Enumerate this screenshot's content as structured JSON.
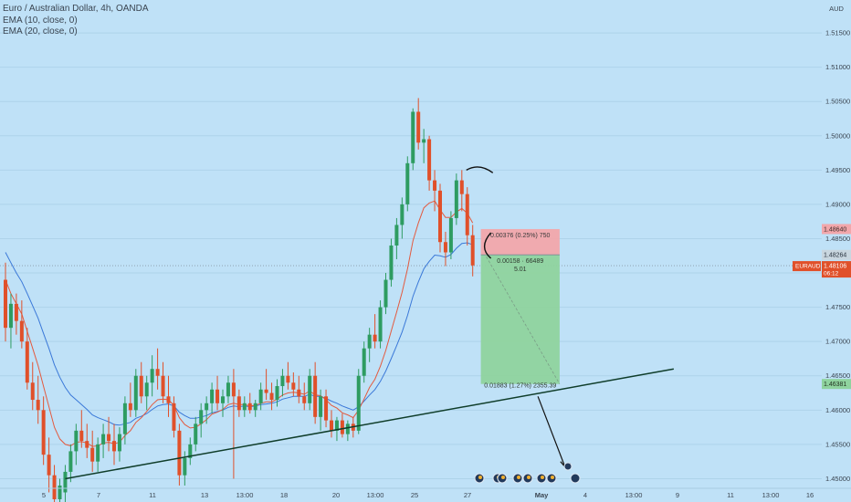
{
  "legend": {
    "symbol_title": "Euro / Australian Dollar, 4h, OANDA",
    "indicators": [
      "EMA (10, close, 0)",
      "EMA (20, close, 0)"
    ]
  },
  "colors": {
    "background": "#bfe1f7",
    "up": "#2e9c61",
    "down": "#e0502a",
    "ema10": "#e35a3f",
    "ema20": "#3a78d8",
    "stop_zone": "#f2a7ab",
    "target_zone": "#8fd39e",
    "price_tag": "#e0502a",
    "trendline": "#0f3d2a"
  },
  "chart_data": {
    "type": "candlestick",
    "symbol": "EURAUD",
    "timeframe": "4h",
    "currency_label": "AUD",
    "y_range": [
      1.4466,
      1.5198
    ],
    "y_ticks": [
      "1.51500",
      "1.51000",
      "1.50500",
      "1.50000",
      "1.49500",
      "1.49000",
      "1.48500",
      "1.48000",
      "1.47500",
      "1.47000",
      "1.46500",
      "1.46000",
      "1.45500",
      "1.45000"
    ],
    "x_ticks": [
      "5",
      "7",
      "11",
      "13",
      "13:00",
      "18",
      "20",
      "13:00",
      "25",
      "27",
      "May",
      "4",
      "13:00",
      "9",
      "11",
      "13:00",
      "16"
    ],
    "price_scale_tags": {
      "symbol": "EURAUD",
      "last_price": "1.48106",
      "countdown": "06:12",
      "stop_level": "1.48640",
      "entry_level": "1.48264",
      "target_level": "1.46381"
    },
    "last_price_line": 1.48106,
    "candles": [
      {
        "o": 1.479,
        "h": 1.4815,
        "l": 1.47,
        "c": 1.472
      },
      {
        "o": 1.472,
        "h": 1.477,
        "l": 1.469,
        "c": 1.4755
      },
      {
        "o": 1.4755,
        "h": 1.477,
        "l": 1.471,
        "c": 1.473
      },
      {
        "o": 1.473,
        "h": 1.476,
        "l": 1.469,
        "c": 1.47
      },
      {
        "o": 1.47,
        "h": 1.472,
        "l": 1.463,
        "c": 1.464
      },
      {
        "o": 1.464,
        "h": 1.467,
        "l": 1.46,
        "c": 1.4615
      },
      {
        "o": 1.4615,
        "h": 1.465,
        "l": 1.458,
        "c": 1.46
      },
      {
        "o": 1.46,
        "h": 1.462,
        "l": 1.452,
        "c": 1.4535
      },
      {
        "o": 1.4535,
        "h": 1.456,
        "l": 1.448,
        "c": 1.4505
      },
      {
        "o": 1.4505,
        "h": 1.452,
        "l": 1.444,
        "c": 1.447
      },
      {
        "o": 1.447,
        "h": 1.45,
        "l": 1.4455,
        "c": 1.449
      },
      {
        "o": 1.448,
        "h": 1.452,
        "l": 1.4466,
        "c": 1.451
      },
      {
        "o": 1.451,
        "h": 1.455,
        "l": 1.4495,
        "c": 1.454
      },
      {
        "o": 1.454,
        "h": 1.458,
        "l": 1.452,
        "c": 1.457
      },
      {
        "o": 1.457,
        "h": 1.46,
        "l": 1.4545,
        "c": 1.4555
      },
      {
        "o": 1.4555,
        "h": 1.458,
        "l": 1.453,
        "c": 1.4545
      },
      {
        "o": 1.4545,
        "h": 1.457,
        "l": 1.451,
        "c": 1.4525
      },
      {
        "o": 1.4525,
        "h": 1.456,
        "l": 1.451,
        "c": 1.455
      },
      {
        "o": 1.455,
        "h": 1.458,
        "l": 1.453,
        "c": 1.4565
      },
      {
        "o": 1.4565,
        "h": 1.459,
        "l": 1.454,
        "c": 1.4555
      },
      {
        "o": 1.4555,
        "h": 1.458,
        "l": 1.452,
        "c": 1.454
      },
      {
        "o": 1.454,
        "h": 1.4575,
        "l": 1.4525,
        "c": 1.4565
      },
      {
        "o": 1.4565,
        "h": 1.462,
        "l": 1.455,
        "c": 1.461
      },
      {
        "o": 1.461,
        "h": 1.464,
        "l": 1.459,
        "c": 1.46
      },
      {
        "o": 1.46,
        "h": 1.466,
        "l": 1.459,
        "c": 1.465
      },
      {
        "o": 1.465,
        "h": 1.467,
        "l": 1.461,
        "c": 1.462
      },
      {
        "o": 1.462,
        "h": 1.465,
        "l": 1.46,
        "c": 1.464
      },
      {
        "o": 1.464,
        "h": 1.468,
        "l": 1.462,
        "c": 1.466
      },
      {
        "o": 1.466,
        "h": 1.469,
        "l": 1.463,
        "c": 1.465
      },
      {
        "o": 1.465,
        "h": 1.467,
        "l": 1.461,
        "c": 1.462
      },
      {
        "o": 1.462,
        "h": 1.465,
        "l": 1.459,
        "c": 1.461
      },
      {
        "o": 1.461,
        "h": 1.462,
        "l": 1.456,
        "c": 1.457
      },
      {
        "o": 1.457,
        "h": 1.458,
        "l": 1.449,
        "c": 1.4505
      },
      {
        "o": 1.4505,
        "h": 1.454,
        "l": 1.449,
        "c": 1.453
      },
      {
        "o": 1.453,
        "h": 1.456,
        "l": 1.452,
        "c": 1.455
      },
      {
        "o": 1.455,
        "h": 1.459,
        "l": 1.454,
        "c": 1.458
      },
      {
        "o": 1.458,
        "h": 1.461,
        "l": 1.456,
        "c": 1.46
      },
      {
        "o": 1.46,
        "h": 1.462,
        "l": 1.458,
        "c": 1.461
      },
      {
        "o": 1.461,
        "h": 1.464,
        "l": 1.4595,
        "c": 1.463
      },
      {
        "o": 1.463,
        "h": 1.465,
        "l": 1.46,
        "c": 1.461
      },
      {
        "o": 1.461,
        "h": 1.463,
        "l": 1.459,
        "c": 1.462
      },
      {
        "o": 1.462,
        "h": 1.465,
        "l": 1.461,
        "c": 1.464
      },
      {
        "o": 1.464,
        "h": 1.466,
        "l": 1.45,
        "c": 1.462
      },
      {
        "o": 1.462,
        "h": 1.463,
        "l": 1.459,
        "c": 1.46
      },
      {
        "o": 1.46,
        "h": 1.462,
        "l": 1.459,
        "c": 1.461
      },
      {
        "o": 1.461,
        "h": 1.4625,
        "l": 1.4595,
        "c": 1.46
      },
      {
        "o": 1.46,
        "h": 1.4615,
        "l": 1.459,
        "c": 1.461
      },
      {
        "o": 1.461,
        "h": 1.464,
        "l": 1.46,
        "c": 1.463
      },
      {
        "o": 1.463,
        "h": 1.466,
        "l": 1.4615,
        "c": 1.4625
      },
      {
        "o": 1.4625,
        "h": 1.464,
        "l": 1.46,
        "c": 1.4615
      },
      {
        "o": 1.4615,
        "h": 1.4645,
        "l": 1.4605,
        "c": 1.4635
      },
      {
        "o": 1.4635,
        "h": 1.466,
        "l": 1.462,
        "c": 1.465
      },
      {
        "o": 1.465,
        "h": 1.467,
        "l": 1.463,
        "c": 1.464
      },
      {
        "o": 1.464,
        "h": 1.4655,
        "l": 1.462,
        "c": 1.463
      },
      {
        "o": 1.463,
        "h": 1.465,
        "l": 1.461,
        "c": 1.462
      },
      {
        "o": 1.462,
        "h": 1.464,
        "l": 1.46,
        "c": 1.461
      },
      {
        "o": 1.461,
        "h": 1.466,
        "l": 1.46,
        "c": 1.465
      },
      {
        "o": 1.465,
        "h": 1.467,
        "l": 1.458,
        "c": 1.459
      },
      {
        "o": 1.459,
        "h": 1.463,
        "l": 1.457,
        "c": 1.462
      },
      {
        "o": 1.462,
        "h": 1.463,
        "l": 1.4575,
        "c": 1.4585
      },
      {
        "o": 1.4585,
        "h": 1.46,
        "l": 1.456,
        "c": 1.457
      },
      {
        "o": 1.457,
        "h": 1.459,
        "l": 1.4555,
        "c": 1.4585
      },
      {
        "o": 1.4585,
        "h": 1.4595,
        "l": 1.456,
        "c": 1.4565
      },
      {
        "o": 1.4565,
        "h": 1.4585,
        "l": 1.4555,
        "c": 1.458
      },
      {
        "o": 1.458,
        "h": 1.459,
        "l": 1.456,
        "c": 1.457
      },
      {
        "o": 1.457,
        "h": 1.466,
        "l": 1.4565,
        "c": 1.465
      },
      {
        "o": 1.465,
        "h": 1.47,
        "l": 1.464,
        "c": 1.469
      },
      {
        "o": 1.469,
        "h": 1.472,
        "l": 1.467,
        "c": 1.471
      },
      {
        "o": 1.471,
        "h": 1.474,
        "l": 1.469,
        "c": 1.47
      },
      {
        "o": 1.47,
        "h": 1.476,
        "l": 1.469,
        "c": 1.475
      },
      {
        "o": 1.475,
        "h": 1.48,
        "l": 1.474,
        "c": 1.479
      },
      {
        "o": 1.479,
        "h": 1.485,
        "l": 1.478,
        "c": 1.484
      },
      {
        "o": 1.484,
        "h": 1.488,
        "l": 1.482,
        "c": 1.487
      },
      {
        "o": 1.487,
        "h": 1.491,
        "l": 1.485,
        "c": 1.49
      },
      {
        "o": 1.49,
        "h": 1.497,
        "l": 1.489,
        "c": 1.496
      },
      {
        "o": 1.496,
        "h": 1.504,
        "l": 1.495,
        "c": 1.5035
      },
      {
        "o": 1.5035,
        "h": 1.5055,
        "l": 1.498,
        "c": 1.499
      },
      {
        "o": 1.499,
        "h": 1.501,
        "l": 1.496,
        "c": 1.4995
      },
      {
        "o": 1.4995,
        "h": 1.5,
        "l": 1.492,
        "c": 1.4935
      },
      {
        "o": 1.4935,
        "h": 1.495,
        "l": 1.489,
        "c": 1.492
      },
      {
        "o": 1.492,
        "h": 1.493,
        "l": 1.483,
        "c": 1.4845
      },
      {
        "o": 1.4845,
        "h": 1.486,
        "l": 1.481,
        "c": 1.483
      },
      {
        "o": 1.483,
        "h": 1.489,
        "l": 1.482,
        "c": 1.488
      },
      {
        "o": 1.488,
        "h": 1.4945,
        "l": 1.487,
        "c": 1.4935
      },
      {
        "o": 1.4935,
        "h": 1.495,
        "l": 1.489,
        "c": 1.4915
      },
      {
        "o": 1.4915,
        "h": 1.4925,
        "l": 1.484,
        "c": 1.4855
      },
      {
        "o": 1.4855,
        "h": 1.487,
        "l": 1.4795,
        "c": 1.4811
      }
    ],
    "ema10": [
      1.479,
      1.477,
      1.4755,
      1.474,
      1.4715,
      1.469,
      1.4665,
      1.4635,
      1.4605,
      1.4575,
      1.4558,
      1.455,
      1.4548,
      1.4553,
      1.4554,
      1.4552,
      1.4547,
      1.4548,
      1.4552,
      1.4553,
      1.4551,
      1.4553,
      1.4563,
      1.457,
      1.4582,
      1.4589,
      1.4598,
      1.4608,
      1.4615,
      1.4616,
      1.4615,
      1.4607,
      1.4589,
      1.4579,
      1.4574,
      1.4575,
      1.458,
      1.4586,
      1.4594,
      1.4597,
      1.4601,
      1.4608,
      1.461,
      1.4608,
      1.4608,
      1.4606,
      1.4607,
      1.461,
      1.4612,
      1.4612,
      1.4616,
      1.4622,
      1.4625,
      1.4626,
      1.4625,
      1.4623,
      1.4628,
      1.4622,
      1.4621,
      1.4615,
      1.4607,
      1.4603,
      1.4596,
      1.4593,
      1.4589,
      1.46,
      1.4616,
      1.4633,
      1.4645,
      1.4664,
      1.4687,
      1.4715,
      1.4743,
      1.4772,
      1.4806,
      1.4847,
      1.4873,
      1.4895,
      1.4902,
      1.4905,
      1.4892,
      1.4881,
      1.4881,
      1.4889,
      1.4894,
      1.4887,
      1.4873
    ],
    "ema20": [
      1.483,
      1.4815,
      1.48,
      1.4787,
      1.477,
      1.4752,
      1.4734,
      1.4712,
      1.469,
      1.4666,
      1.4648,
      1.4633,
      1.4622,
      1.4615,
      1.4608,
      1.4601,
      1.4593,
      1.4589,
      1.4586,
      1.4583,
      1.4579,
      1.4578,
      1.458,
      1.4582,
      1.4588,
      1.4591,
      1.4595,
      1.4601,
      1.4606,
      1.4608,
      1.4609,
      1.4606,
      1.4597,
      1.4592,
      1.4588,
      1.4588,
      1.459,
      1.4592,
      1.4596,
      1.4598,
      1.46,
      1.4604,
      1.4606,
      1.4605,
      1.4606,
      1.4605,
      1.4606,
      1.4608,
      1.4609,
      1.461,
      1.4612,
      1.4616,
      1.4618,
      1.462,
      1.462,
      1.462,
      1.4623,
      1.462,
      1.462,
      1.4617,
      1.4613,
      1.461,
      1.4606,
      1.4603,
      1.46,
      1.4605,
      1.4613,
      1.4622,
      1.463,
      1.4642,
      1.4657,
      1.4675,
      1.4694,
      1.4714,
      1.4738,
      1.4766,
      1.4787,
      1.4806,
      1.4817,
      1.4826,
      1.4825,
      1.4823,
      1.4827,
      1.4836,
      1.4843,
      1.4844,
      1.4841
    ],
    "trendline": {
      "from": {
        "bar": 11,
        "price": 1.45
      },
      "to": {
        "bar": 123,
        "price": 1.466
      }
    },
    "position": {
      "type": "short",
      "entry_bar": 88,
      "end_bar": 102,
      "entry": 1.48264,
      "stop": 1.4864,
      "target": 1.46381,
      "stop_label": "0.00376 (0.25%) 750",
      "entry_label": [
        "0.00158 · 66489",
        "5.01"
      ],
      "target_label": "0.01883 (1.27%) 2355.39"
    },
    "projection_arrow": {
      "from": {
        "bar": 98,
        "price": 1.462
      },
      "to": {
        "bar": 103,
        "price": 1.4517
      }
    },
    "arc_annotations": [
      {
        "bar": 85,
        "price": 1.495
      },
      {
        "bar": 88,
        "price": 1.484
      }
    ],
    "events_count": 7
  }
}
